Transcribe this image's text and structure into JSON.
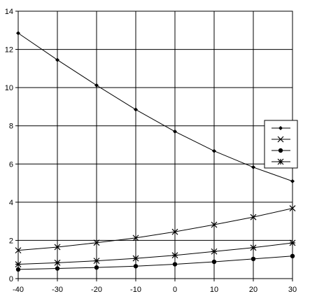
{
  "chart_data": {
    "type": "line",
    "title": "",
    "xlabel": "",
    "ylabel": "",
    "xlim": [
      -40,
      30
    ],
    "ylim": [
      0,
      14
    ],
    "x_ticks": [
      "-40",
      "-30",
      "-20",
      "-10",
      "0",
      "10",
      "20",
      "30"
    ],
    "y_ticks": [
      "0",
      "2",
      "4",
      "6",
      "8",
      "10",
      "12",
      "14"
    ],
    "grid": true,
    "legend_position": "right",
    "x": [
      -40,
      -30,
      -20,
      -10,
      0,
      10,
      20,
      30
    ],
    "series": [
      {
        "marker": "diamond",
        "values": [
          12.85,
          11.45,
          10.12,
          8.85,
          7.7,
          6.68,
          5.83,
          5.1
        ]
      },
      {
        "marker": "x",
        "values": [
          1.48,
          1.65,
          1.88,
          2.13,
          2.45,
          2.82,
          3.22,
          3.68
        ]
      },
      {
        "marker": "circle",
        "values": [
          0.48,
          0.53,
          0.58,
          0.65,
          0.75,
          0.88,
          1.03,
          1.18
        ]
      },
      {
        "marker": "star",
        "values": [
          0.75,
          0.83,
          0.93,
          1.06,
          1.22,
          1.42,
          1.62,
          1.87
        ]
      }
    ],
    "colors": {
      "line": "#000000",
      "grid": "#000000",
      "background": "#ffffff"
    }
  }
}
